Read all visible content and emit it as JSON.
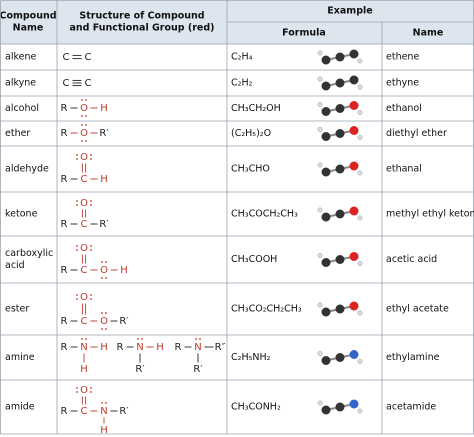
{
  "header": {
    "name": [
      "Compound",
      "Name"
    ],
    "structure": [
      "Structure of Compound",
      "and Functional Group (red)"
    ],
    "example": "Example",
    "formula": "Formula",
    "example_name": "Name"
  },
  "table": {
    "rows": [
      {
        "name": [
          "alkene"
        ],
        "structure": [
          "C",
          "C"
        ],
        "formula": "C₂H₄",
        "example": "ethene"
      },
      {
        "name": [
          "alkyne"
        ],
        "structure": [
          "C",
          "C"
        ],
        "formula": "C₂H₂",
        "example": "ethyne"
      },
      {
        "name": [
          "alcohol"
        ],
        "structure": [
          "R",
          "O",
          "H"
        ],
        "formula": "CH₃CH₂OH",
        "example": "ethanol"
      },
      {
        "name": [
          "ether"
        ],
        "structure": [
          "R",
          "O",
          "R′"
        ],
        "formula": "(C₂H₅)₂O",
        "example": "diethyl ether"
      },
      {
        "name": [
          "aldehyde"
        ],
        "structure": [
          "O",
          "C",
          "R",
          "H"
        ],
        "formula": "CH₃CHO",
        "example": "ethanal"
      },
      {
        "name": [
          "ketone"
        ],
        "structure": [
          "O",
          "C",
          "R",
          "R′"
        ],
        "formula": "CH₃COCH₂CH₃",
        "example": "methyl ethyl ketone"
      },
      {
        "name": [
          "carboxylic",
          "acid"
        ],
        "structure": [
          "O",
          "C",
          "R",
          "O",
          "H"
        ],
        "formula": "CH₃COOH",
        "example": "acetic acid"
      },
      {
        "name": [
          "ester"
        ],
        "structure": [
          "O",
          "C",
          "R",
          "O",
          "R′"
        ],
        "formula": "CH₃CO₂CH₂CH₃",
        "example": "ethyl acetate"
      },
      {
        "name": [
          "amine"
        ],
        "structure": [
          "R",
          "N",
          "H",
          "H",
          "R",
          "N",
          "H",
          "R′",
          "R",
          "N",
          "R″",
          "R′"
        ],
        "formula": "C₂H₅NH₂",
        "example": "ethylamine"
      },
      {
        "name": [
          "amide"
        ],
        "structure": [
          "O",
          "C",
          "R",
          "N",
          "R′",
          "H"
        ],
        "formula": "CH₃CONH₂",
        "example": "acetamide"
      }
    ]
  }
}
